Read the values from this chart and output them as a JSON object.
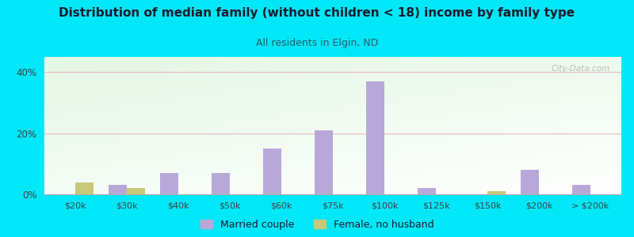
{
  "title": "Distribution of median family (without children < 18) income by family type",
  "subtitle": "All residents in Elgin, ND",
  "categories": [
    "$20k",
    "$30k",
    "$40k",
    "$50k",
    "$60k",
    "$75k",
    "$100k",
    "$125k",
    "$150k",
    "$200k",
    "> $200k"
  ],
  "married_couple": [
    0.0,
    3.0,
    7.0,
    7.0,
    15.0,
    21.0,
    37.0,
    2.0,
    0.0,
    8.0,
    3.0
  ],
  "female_no_husband": [
    4.0,
    2.0,
    0.0,
    0.0,
    0.0,
    0.0,
    0.0,
    0.0,
    1.0,
    0.0,
    0.0
  ],
  "married_color": "#b8a8d8",
  "female_color": "#c8c87a",
  "bg_outer": "#00e8f8",
  "title_color": "#1a1a2e",
  "subtitle_color": "#2a5a6a",
  "axis_color": "#404040",
  "grid_color": "#e8b8c8",
  "ylim": [
    0,
    45
  ],
  "yticks": [
    0,
    20,
    40
  ],
  "bar_width": 0.35,
  "watermark": "City-Data.com"
}
